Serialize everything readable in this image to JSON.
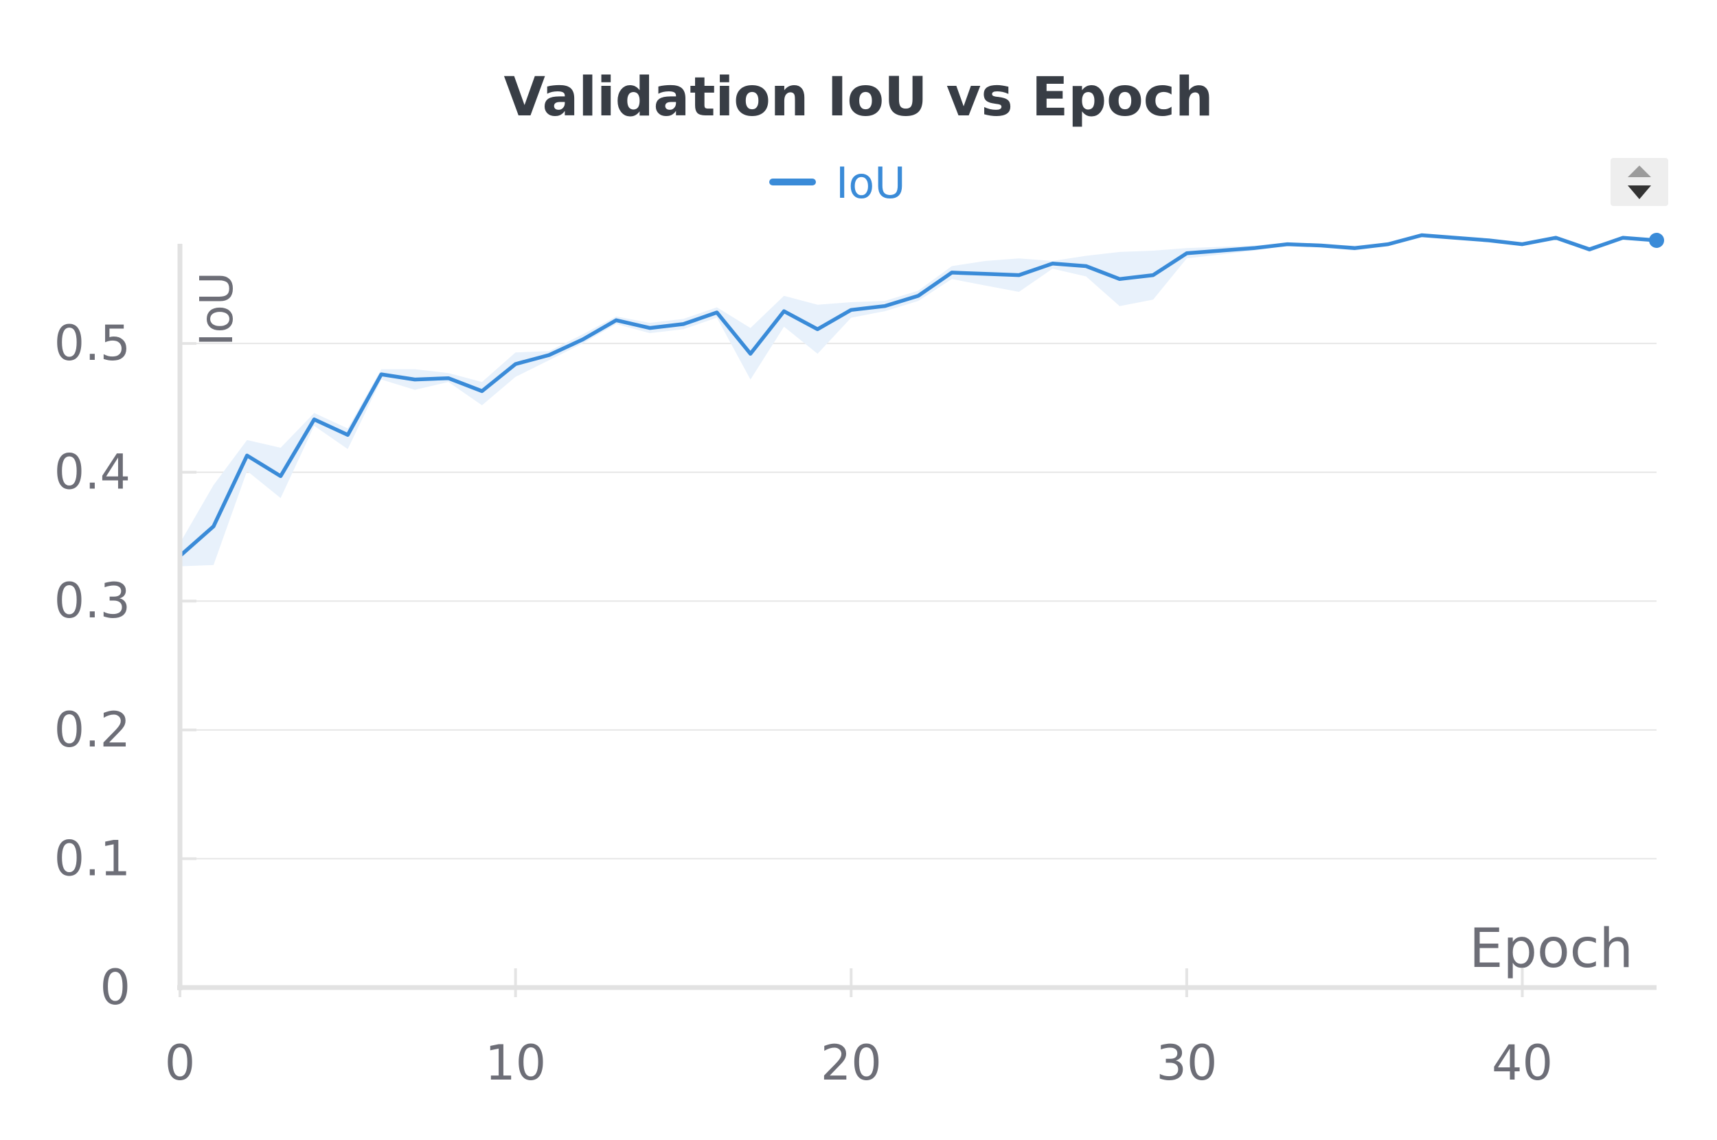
{
  "chart_data": {
    "type": "line",
    "title": "Validation IoU vs Epoch",
    "xlabel": "Epoch",
    "ylabel": "IoU",
    "xlim": [
      0,
      44
    ],
    "ylim": [
      0,
      0.58
    ],
    "xticks": [
      0,
      10,
      20,
      30,
      40
    ],
    "xtick_labels": [
      "0",
      "10",
      "20",
      "30",
      "40"
    ],
    "yticks": [
      0,
      0.1,
      0.2,
      0.3,
      0.4,
      0.5
    ],
    "ytick_labels": [
      "0",
      "0.1",
      "0.2",
      "0.3",
      "0.4",
      "0.5"
    ],
    "grid": true,
    "legend_position": "top-center",
    "series": [
      {
        "name": "IoU",
        "color": "#3a8bd8",
        "band_color": "#e8f1fb",
        "x": [
          0,
          1,
          2,
          3,
          4,
          5,
          6,
          7,
          8,
          9,
          10,
          11,
          12,
          13,
          14,
          15,
          16,
          17,
          18,
          19,
          20,
          21,
          22,
          23,
          24,
          25,
          26,
          27,
          28,
          29,
          30,
          31,
          32,
          33,
          34,
          35,
          36,
          37,
          38,
          39,
          40,
          41,
          42,
          43,
          44
        ],
        "values": [
          0.335,
          0.358,
          0.413,
          0.397,
          0.441,
          0.429,
          0.476,
          0.472,
          0.473,
          0.463,
          0.484,
          0.491,
          0.503,
          0.518,
          0.512,
          0.515,
          0.524,
          0.492,
          0.525,
          0.511,
          0.526,
          0.529,
          0.537,
          0.555,
          0.554,
          0.553,
          0.562,
          0.56,
          0.55,
          0.553,
          0.57,
          0.572,
          0.574,
          0.577,
          0.576,
          0.574,
          0.577,
          0.584,
          0.582,
          0.58,
          0.577,
          0.582,
          0.573,
          0.582,
          0.58
        ],
        "band_upper": [
          0.345,
          0.39,
          0.425,
          0.419,
          0.446,
          0.434,
          0.48,
          0.48,
          0.477,
          0.47,
          0.493,
          0.494,
          0.507,
          0.521,
          0.516,
          0.519,
          0.528,
          0.512,
          0.537,
          0.53,
          0.532,
          0.533,
          0.541,
          0.56,
          0.564,
          0.566,
          0.564,
          0.568,
          0.571,
          0.572,
          0.574,
          0.575,
          0.576,
          0.578,
          0.577,
          0.576,
          0.578,
          0.585,
          0.583,
          0.581,
          0.578,
          0.583,
          0.575,
          0.583,
          0.581
        ],
        "band_lower": [
          0.327,
          0.328,
          0.401,
          0.38,
          0.436,
          0.418,
          0.472,
          0.464,
          0.47,
          0.452,
          0.474,
          0.487,
          0.5,
          0.515,
          0.508,
          0.511,
          0.52,
          0.472,
          0.513,
          0.492,
          0.52,
          0.525,
          0.533,
          0.55,
          0.545,
          0.54,
          0.558,
          0.552,
          0.529,
          0.534,
          0.566,
          0.569,
          0.572,
          0.576,
          0.575,
          0.572,
          0.576,
          0.583,
          0.581,
          0.579,
          0.576,
          0.581,
          0.571,
          0.581,
          0.579
        ]
      }
    ]
  },
  "controls": {
    "scroll_up_icon": "triangle-up-icon",
    "scroll_down_icon": "triangle-down-icon"
  }
}
